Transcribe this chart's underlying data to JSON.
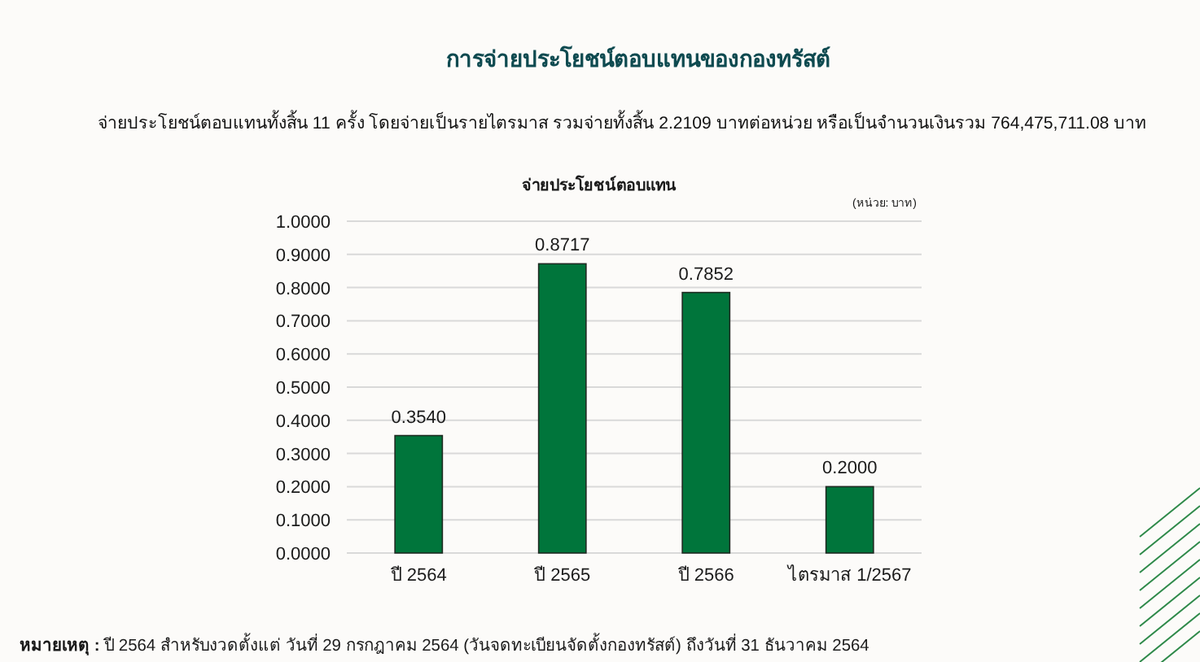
{
  "chart_data": {
    "type": "bar",
    "title": "การจ่ายประโยชน์ตอบแทนของกองทรัสต์",
    "subtitle": "จ่ายประโยชน์ตอบแทนทั้งสิ้น 11 ครั้ง โดยจ่ายเป็นรายไตรมาส รวมจ่ายทั้งสิ้น 2.2109 บาทต่อหน่วย  หรือเป็นจำนวนเงินรวม 764,475,711.08 บาท",
    "annotations": [
      "จ่ายประโยชน์ตอบแทน",
      "**หมายเหตุ :** ปี 2564 สำหรับงวดตั้งแต่ วันที่ 29 กรกฎาคม 2564 (วันจดทะเบียนจัดตั้งกองทรัสต์) ถึงวันที่ 31 ธันวาคม 2564"
    ],
    "ylabel": "(หน่วย: บาท)",
    "categories": [
      "ปี 2564",
      "ปี 2565",
      "ปี 2566",
      "ไตรมาส 1/2567"
    ],
    "values": [
      0.354,
      0.8717,
      0.7852,
      0.2
    ],
    "value_labels": [
      "0.3540",
      "0.8717",
      "0.7852",
      "0.2000"
    ],
    "color": "#00753b",
    "ylim": [
      0,
      1
    ],
    "yticks": [
      {
        "value": 0,
        "label": "0.0000"
      },
      {
        "value": 0.1,
        "label": "0.1000"
      },
      {
        "value": 0.2,
        "label": "0.2000"
      },
      {
        "value": 0.3,
        "label": "0.3000"
      },
      {
        "value": 0.4,
        "label": "0.4000"
      },
      {
        "value": 0.5,
        "label": "0.5000"
      },
      {
        "value": 0.6,
        "label": "0.6000"
      },
      {
        "value": 0.7,
        "label": "0.7000"
      },
      {
        "value": 0.8,
        "label": "0.8000"
      },
      {
        "value": 0.9,
        "label": "0.9000"
      },
      {
        "value": 1,
        "label": "1.0000"
      }
    ],
    "grid": "y"
  }
}
